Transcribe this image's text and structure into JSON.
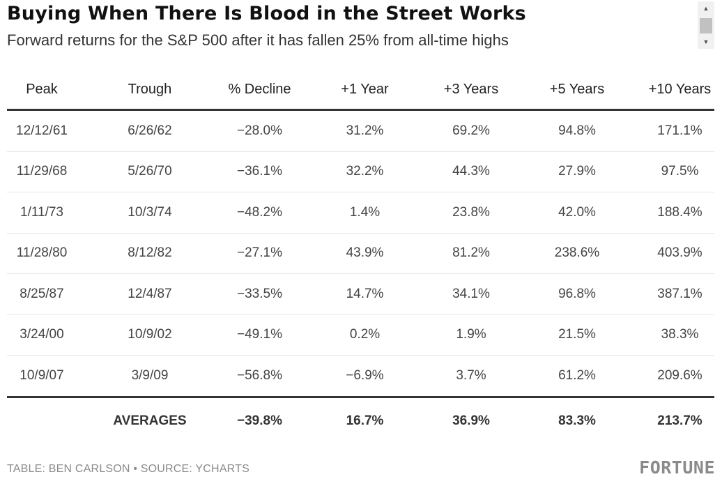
{
  "title": "Buying When There Is Blood in the Street Works",
  "subtitle": "Forward returns for the S&P 500 after it has fallen 25% from all-time highs",
  "footer": "TABLE: BEN CARLSON • SOURCE: YCHARTS",
  "logo": "FORTUNE",
  "scrollbar": {
    "up": "▲",
    "down": "▼"
  },
  "chart_data": {
    "type": "table",
    "columns": [
      "Peak",
      "Trough",
      "% Decline",
      "+1 Year",
      "+3 Years",
      "+5 Years",
      "+10 Years"
    ],
    "rows": [
      [
        "12/12/61",
        "6/26/62",
        "−28.0%",
        "31.2%",
        "69.2%",
        "94.8%",
        "171.1%"
      ],
      [
        "11/29/68",
        "5/26/70",
        "−36.1%",
        "32.2%",
        "44.3%",
        "27.9%",
        "97.5%"
      ],
      [
        "1/11/73",
        "10/3/74",
        "−48.2%",
        "1.4%",
        "23.8%",
        "42.0%",
        "188.4%"
      ],
      [
        "11/28/80",
        "8/12/82",
        "−27.1%",
        "43.9%",
        "81.2%",
        "238.6%",
        "403.9%"
      ],
      [
        "8/25/87",
        "12/4/87",
        "−33.5%",
        "14.7%",
        "34.1%",
        "96.8%",
        "387.1%"
      ],
      [
        "3/24/00",
        "10/9/02",
        "−49.1%",
        "0.2%",
        "1.9%",
        "21.5%",
        "38.3%"
      ],
      [
        "10/9/07",
        "3/9/09",
        "−56.8%",
        "−6.9%",
        "3.7%",
        "61.2%",
        "209.6%"
      ]
    ],
    "averages": [
      "",
      "AVERAGES",
      "−39.8%",
      "16.7%",
      "36.9%",
      "83.3%",
      "213.7%"
    ]
  }
}
